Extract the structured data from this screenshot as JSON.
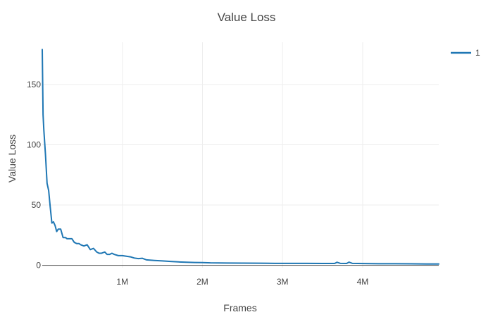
{
  "chart_data": {
    "type": "line",
    "title": "Value Loss",
    "xlabel": "Frames",
    "ylabel": "Value Loss",
    "xlim": [
      0,
      4950000
    ],
    "ylim": [
      -2,
      185
    ],
    "x_ticks": [
      {
        "value": 1000000,
        "label": "1M"
      },
      {
        "value": 2000000,
        "label": "2M"
      },
      {
        "value": 3000000,
        "label": "3M"
      },
      {
        "value": 4000000,
        "label": "4M"
      }
    ],
    "y_ticks": [
      {
        "value": 0,
        "label": "0"
      },
      {
        "value": 50,
        "label": "50"
      },
      {
        "value": 100,
        "label": "100"
      },
      {
        "value": 150,
        "label": "150"
      }
    ],
    "grid": true,
    "legend": {
      "placement": "top-right"
    },
    "series": [
      {
        "name": "1",
        "color": "#1f77b4",
        "x": [
          0,
          10000,
          20000,
          40000,
          60000,
          80000,
          100000,
          120000,
          140000,
          160000,
          180000,
          200000,
          230000,
          260000,
          290000,
          310000,
          330000,
          370000,
          400000,
          430000,
          460000,
          480000,
          520000,
          560000,
          600000,
          640000,
          680000,
          710000,
          740000,
          780000,
          810000,
          840000,
          870000,
          900000,
          950000,
          1000000,
          1050000,
          1100000,
          1150000,
          1200000,
          1250000,
          1300000,
          1400000,
          1500000,
          1600000,
          1700000,
          1800000,
          1900000,
          2000000,
          2100000,
          2300000,
          2500000,
          2700000,
          2900000,
          3100000,
          3300000,
          3500000,
          3650000,
          3680000,
          3720000,
          3800000,
          3830000,
          3870000,
          4000000,
          4200000,
          4400000,
          4600000,
          4800000,
          4950000
        ],
        "y": [
          179,
          125,
          112,
          92,
          68,
          62,
          48,
          35,
          36,
          33,
          28,
          30,
          30,
          23,
          23,
          22,
          22,
          22,
          19,
          18,
          18,
          17,
          16,
          17,
          13,
          14,
          11,
          10,
          10,
          11,
          9,
          9,
          10,
          9,
          8,
          8,
          7.5,
          7,
          6,
          5.5,
          5.8,
          4.5,
          4.0,
          3.6,
          3.2,
          2.8,
          2.5,
          2.3,
          2.2,
          2.0,
          1.9,
          1.8,
          1.7,
          1.6,
          1.6,
          1.6,
          1.5,
          1.5,
          2.5,
          1.6,
          1.5,
          2.6,
          1.6,
          1.4,
          1.3,
          1.3,
          1.2,
          1.1,
          1.1
        ]
      }
    ]
  }
}
